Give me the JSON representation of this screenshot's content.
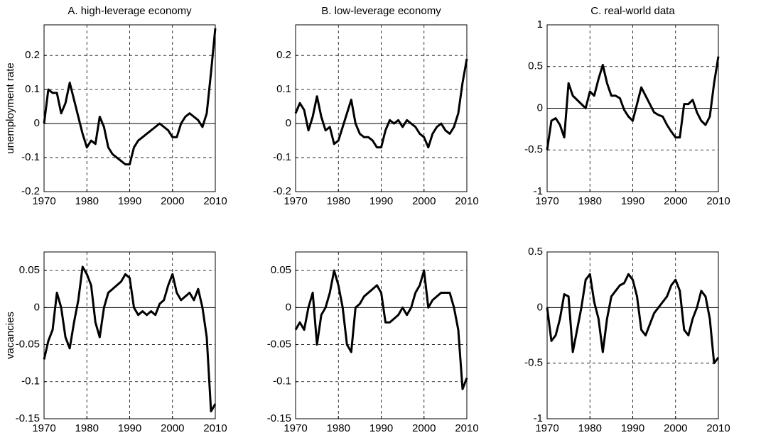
{
  "chart_data": [
    {
      "type": "line",
      "title": "A. high-leverage economy",
      "ylabel": "unemployment rate",
      "x": [
        1970,
        1971,
        1972,
        1973,
        1974,
        1975,
        1976,
        1977,
        1978,
        1979,
        1980,
        1981,
        1982,
        1983,
        1984,
        1985,
        1986,
        1987,
        1988,
        1989,
        1990,
        1991,
        1992,
        1993,
        1994,
        1995,
        1996,
        1997,
        1998,
        1999,
        2000,
        2001,
        2002,
        2003,
        2004,
        2005,
        2006,
        2007,
        2008,
        2009,
        2010
      ],
      "series": [
        {
          "color": "#000000",
          "values": [
            0.0,
            0.1,
            0.09,
            0.09,
            0.03,
            0.06,
            0.12,
            0.07,
            0.02,
            -0.03,
            -0.07,
            -0.05,
            -0.06,
            0.02,
            -0.01,
            -0.07,
            -0.09,
            -0.1,
            -0.11,
            -0.12,
            -0.12,
            -0.07,
            -0.05,
            -0.04,
            -0.03,
            -0.02,
            -0.01,
            0.0,
            -0.01,
            -0.02,
            -0.04,
            -0.04,
            0.0,
            0.02,
            0.03,
            0.02,
            0.01,
            -0.01,
            0.03,
            0.15,
            0.28
          ]
        }
      ],
      "xlim": [
        1970,
        2010
      ],
      "xticks": [
        1970,
        1980,
        1990,
        2000,
        2010
      ],
      "ylim": [
        -0.2,
        0.29
      ],
      "yticks": [
        -0.2,
        -0.1,
        0,
        0.1,
        0.2
      ],
      "grid": true
    },
    {
      "type": "line",
      "title": "B. low-leverage economy",
      "x": [
        1970,
        1971,
        1972,
        1973,
        1974,
        1975,
        1976,
        1977,
        1978,
        1979,
        1980,
        1981,
        1982,
        1983,
        1984,
        1985,
        1986,
        1987,
        1988,
        1989,
        1990,
        1991,
        1992,
        1993,
        1994,
        1995,
        1996,
        1997,
        1998,
        1999,
        2000,
        2001,
        2002,
        2003,
        2004,
        2005,
        2006,
        2007,
        2008,
        2009,
        2010
      ],
      "series": [
        {
          "color": "#000000",
          "values": [
            0.03,
            0.06,
            0.04,
            -0.02,
            0.02,
            0.08,
            0.02,
            -0.02,
            -0.01,
            -0.06,
            -0.05,
            -0.01,
            0.03,
            0.07,
            0.0,
            -0.03,
            -0.04,
            -0.04,
            -0.05,
            -0.07,
            -0.07,
            -0.02,
            0.01,
            0.0,
            0.01,
            -0.01,
            0.01,
            0.0,
            -0.01,
            -0.03,
            -0.04,
            -0.07,
            -0.03,
            -0.01,
            0.0,
            -0.02,
            -0.03,
            -0.01,
            0.03,
            0.12,
            0.19
          ]
        }
      ],
      "xlim": [
        1970,
        2010
      ],
      "xticks": [
        1970,
        1980,
        1990,
        2000,
        2010
      ],
      "ylim": [
        -0.2,
        0.29
      ],
      "yticks": [
        -0.2,
        -0.1,
        0,
        0.1,
        0.2
      ],
      "grid": true
    },
    {
      "type": "line",
      "title": "C. real-world data",
      "x": [
        1970,
        1971,
        1972,
        1973,
        1974,
        1975,
        1976,
        1977,
        1978,
        1979,
        1980,
        1981,
        1982,
        1983,
        1984,
        1985,
        1986,
        1987,
        1988,
        1989,
        1990,
        1991,
        1992,
        1993,
        1994,
        1995,
        1996,
        1997,
        1998,
        1999,
        2000,
        2001,
        2002,
        2003,
        2004,
        2005,
        2006,
        2007,
        2008,
        2009,
        2010
      ],
      "series": [
        {
          "color": "#000000",
          "values": [
            -0.5,
            -0.15,
            -0.12,
            -0.2,
            -0.35,
            0.3,
            0.15,
            0.1,
            0.05,
            0.0,
            0.2,
            0.15,
            0.35,
            0.52,
            0.3,
            0.15,
            0.15,
            0.12,
            -0.02,
            -0.1,
            -0.15,
            0.05,
            0.25,
            0.15,
            0.05,
            -0.05,
            -0.08,
            -0.1,
            -0.2,
            -0.28,
            -0.35,
            -0.35,
            0.05,
            0.05,
            0.1,
            -0.05,
            -0.15,
            -0.2,
            -0.1,
            0.3,
            0.62
          ]
        }
      ],
      "xlim": [
        1970,
        2010
      ],
      "xticks": [
        1970,
        1980,
        1990,
        2000,
        2010
      ],
      "ylim": [
        -1,
        1
      ],
      "yticks": [
        -1,
        -0.5,
        0,
        0.5,
        1
      ],
      "grid": true
    },
    {
      "type": "line",
      "ylabel": "vacancies",
      "x": [
        1970,
        1971,
        1972,
        1973,
        1974,
        1975,
        1976,
        1977,
        1978,
        1979,
        1980,
        1981,
        1982,
        1983,
        1984,
        1985,
        1986,
        1987,
        1988,
        1989,
        1990,
        1991,
        1992,
        1993,
        1994,
        1995,
        1996,
        1997,
        1998,
        1999,
        2000,
        2001,
        2002,
        2003,
        2004,
        2005,
        2006,
        2007,
        2008,
        2009,
        2010
      ],
      "series": [
        {
          "color": "#000000",
          "values": [
            -0.07,
            -0.045,
            -0.03,
            0.02,
            0.0,
            -0.04,
            -0.055,
            -0.02,
            0.01,
            0.055,
            0.045,
            0.03,
            -0.02,
            -0.04,
            0.0,
            0.02,
            0.025,
            0.03,
            0.035,
            0.045,
            0.04,
            0.0,
            -0.01,
            -0.005,
            -0.01,
            -0.005,
            -0.01,
            0.005,
            0.01,
            0.03,
            0.045,
            0.02,
            0.01,
            0.015,
            0.02,
            0.01,
            0.025,
            0.0,
            -0.04,
            -0.14,
            -0.13
          ]
        }
      ],
      "xlim": [
        1970,
        2010
      ],
      "xticks": [
        1970,
        1980,
        1990,
        2000,
        2010
      ],
      "ylim": [
        -0.15,
        0.075
      ],
      "yticks": [
        -0.15,
        -0.1,
        -0.05,
        0,
        0.05
      ],
      "grid": true
    },
    {
      "type": "line",
      "x": [
        1970,
        1971,
        1972,
        1973,
        1974,
        1975,
        1976,
        1977,
        1978,
        1979,
        1980,
        1981,
        1982,
        1983,
        1984,
        1985,
        1986,
        1987,
        1988,
        1989,
        1990,
        1991,
        1992,
        1993,
        1994,
        1995,
        1996,
        1997,
        1998,
        1999,
        2000,
        2001,
        2002,
        2003,
        2004,
        2005,
        2006,
        2007,
        2008,
        2009,
        2010
      ],
      "series": [
        {
          "color": "#000000",
          "values": [
            -0.03,
            -0.02,
            -0.03,
            0.0,
            0.02,
            -0.05,
            -0.01,
            0.0,
            0.02,
            0.05,
            0.03,
            0.0,
            -0.05,
            -0.06,
            0.0,
            0.005,
            0.015,
            0.02,
            0.025,
            0.03,
            0.02,
            -0.02,
            -0.02,
            -0.015,
            -0.01,
            0.0,
            -0.01,
            0.0,
            0.02,
            0.03,
            0.05,
            0.0,
            0.01,
            0.015,
            0.02,
            0.02,
            0.02,
            0.0,
            -0.03,
            -0.11,
            -0.095
          ]
        }
      ],
      "xlim": [
        1970,
        2010
      ],
      "xticks": [
        1970,
        1980,
        1990,
        2000,
        2010
      ],
      "ylim": [
        -0.15,
        0.075
      ],
      "yticks": [
        -0.15,
        -0.1,
        -0.05,
        0,
        0.05
      ],
      "grid": true
    },
    {
      "type": "line",
      "x": [
        1970,
        1971,
        1972,
        1973,
        1974,
        1975,
        1976,
        1977,
        1978,
        1979,
        1980,
        1981,
        1982,
        1983,
        1984,
        1985,
        1986,
        1987,
        1988,
        1989,
        1990,
        1991,
        1992,
        1993,
        1994,
        1995,
        1996,
        1997,
        1998,
        1999,
        2000,
        2001,
        2002,
        2003,
        2004,
        2005,
        2006,
        2007,
        2008,
        2009,
        2010
      ],
      "series": [
        {
          "color": "#000000",
          "values": [
            0.0,
            -0.3,
            -0.25,
            -0.1,
            0.12,
            0.1,
            -0.4,
            -0.2,
            0.0,
            0.25,
            0.3,
            0.05,
            -0.1,
            -0.4,
            -0.1,
            0.1,
            0.15,
            0.2,
            0.22,
            0.3,
            0.25,
            0.1,
            -0.2,
            -0.25,
            -0.15,
            -0.05,
            0.0,
            0.05,
            0.1,
            0.2,
            0.25,
            0.15,
            -0.2,
            -0.25,
            -0.1,
            0.0,
            0.15,
            0.1,
            -0.1,
            -0.5,
            -0.45
          ]
        }
      ],
      "xlim": [
        1970,
        2010
      ],
      "xticks": [
        1970,
        1980,
        1990,
        2000,
        2010
      ],
      "ylim": [
        -1,
        0.5
      ],
      "yticks": [
        -1,
        -0.5,
        0,
        0.5
      ],
      "grid": true
    }
  ]
}
